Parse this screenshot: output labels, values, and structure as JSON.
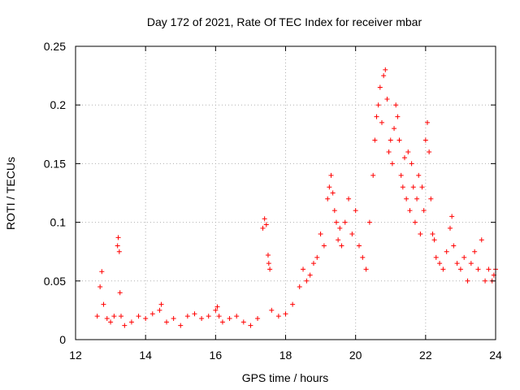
{
  "chart_data": {
    "type": "scatter",
    "title": "Day 172 of 2021, Rate Of TEC Index for receiver mbar",
    "xlabel": "GPS time / hours",
    "ylabel": "ROTI / TECUs",
    "xlim": [
      12,
      24
    ],
    "ylim": [
      0,
      0.25
    ],
    "grid": true,
    "marker": "+",
    "color": "#ff0000",
    "x_ticks": [
      12,
      14,
      16,
      18,
      20,
      22,
      24
    ],
    "x_tick_labels": [
      "12",
      "14",
      "16",
      "18",
      "20",
      "22",
      "24"
    ],
    "y_ticks": [
      0,
      0.05,
      0.1,
      0.15,
      0.2,
      0.25
    ],
    "y_tick_labels": [
      "0",
      "0.05",
      "0.1",
      "0.15",
      "0.2",
      "0.25"
    ],
    "series": [
      {
        "name": "ROTI",
        "x": [
          12.62,
          12.7,
          12.75,
          12.8,
          12.9,
          13.0,
          13.1,
          13.2,
          13.22,
          13.25,
          13.27,
          13.3,
          13.4,
          13.6,
          13.8,
          14.0,
          14.2,
          14.4,
          14.45,
          14.6,
          14.8,
          15.0,
          15.2,
          15.4,
          15.6,
          15.8,
          16.0,
          16.05,
          16.1,
          16.2,
          16.4,
          16.6,
          16.8,
          17.0,
          17.2,
          17.35,
          17.4,
          17.45,
          17.5,
          17.52,
          17.55,
          17.6,
          17.8,
          18.0,
          18.2,
          18.4,
          18.5,
          18.6,
          18.7,
          18.8,
          18.9,
          19.0,
          19.1,
          19.2,
          19.25,
          19.3,
          19.35,
          19.4,
          19.45,
          19.5,
          19.55,
          19.6,
          19.7,
          19.8,
          19.9,
          20.0,
          20.1,
          20.2,
          20.3,
          20.4,
          20.5,
          20.55,
          20.6,
          20.65,
          20.7,
          20.75,
          20.8,
          20.85,
          20.9,
          20.95,
          21.0,
          21.05,
          21.1,
          21.15,
          21.2,
          21.25,
          21.3,
          21.35,
          21.4,
          21.45,
          21.5,
          21.55,
          21.6,
          21.65,
          21.7,
          21.75,
          21.8,
          21.85,
          21.9,
          21.95,
          22.0,
          22.05,
          22.1,
          22.15,
          22.2,
          22.25,
          22.3,
          22.4,
          22.5,
          22.6,
          22.7,
          22.75,
          22.8,
          22.9,
          23.0,
          23.1,
          23.2,
          23.3,
          23.4,
          23.5,
          23.6,
          23.7,
          23.8,
          23.9,
          23.95,
          24.0
        ],
        "y": [
          0.02,
          0.045,
          0.058,
          0.03,
          0.018,
          0.015,
          0.02,
          0.08,
          0.087,
          0.075,
          0.04,
          0.02,
          0.012,
          0.015,
          0.02,
          0.018,
          0.022,
          0.025,
          0.03,
          0.015,
          0.018,
          0.012,
          0.02,
          0.022,
          0.018,
          0.02,
          0.025,
          0.028,
          0.02,
          0.015,
          0.018,
          0.02,
          0.015,
          0.012,
          0.018,
          0.095,
          0.103,
          0.098,
          0.072,
          0.065,
          0.06,
          0.025,
          0.02,
          0.022,
          0.03,
          0.045,
          0.06,
          0.05,
          0.055,
          0.065,
          0.07,
          0.09,
          0.08,
          0.12,
          0.13,
          0.14,
          0.125,
          0.11,
          0.1,
          0.085,
          0.095,
          0.08,
          0.1,
          0.12,
          0.09,
          0.11,
          0.08,
          0.07,
          0.06,
          0.1,
          0.14,
          0.17,
          0.19,
          0.2,
          0.215,
          0.185,
          0.225,
          0.23,
          0.205,
          0.16,
          0.17,
          0.15,
          0.18,
          0.2,
          0.19,
          0.17,
          0.14,
          0.13,
          0.155,
          0.12,
          0.16,
          0.11,
          0.15,
          0.13,
          0.1,
          0.12,
          0.14,
          0.09,
          0.13,
          0.11,
          0.17,
          0.185,
          0.16,
          0.12,
          0.09,
          0.085,
          0.07,
          0.065,
          0.06,
          0.075,
          0.095,
          0.105,
          0.08,
          0.065,
          0.06,
          0.07,
          0.05,
          0.065,
          0.075,
          0.06,
          0.085,
          0.05,
          0.06,
          0.05,
          0.055,
          0.06
        ]
      }
    ]
  }
}
